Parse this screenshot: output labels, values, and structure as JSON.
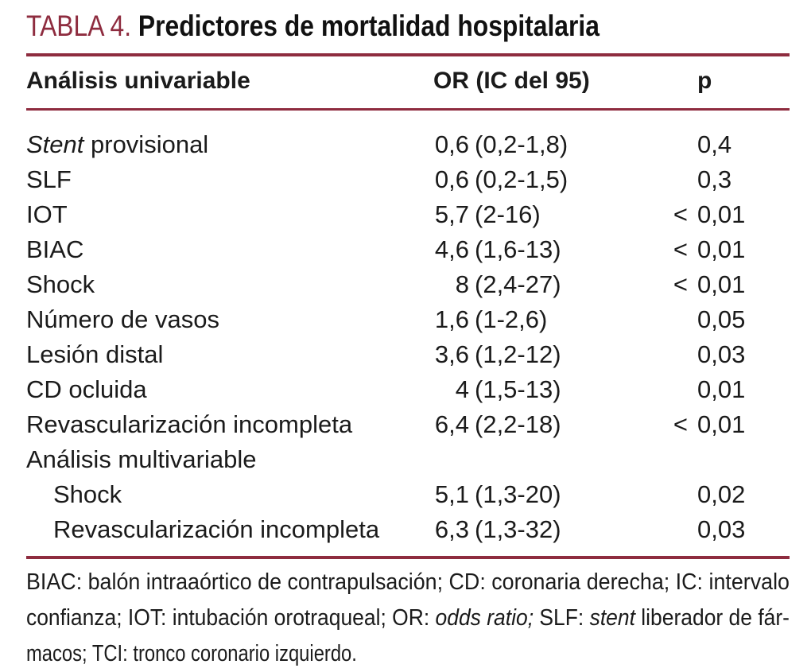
{
  "title": {
    "label": "TABLA 4.",
    "text": "Predictores de mortalidad hospitalaria"
  },
  "colors": {
    "accent": "#8E2C3F",
    "text": "#1b1b1b"
  },
  "header": {
    "col1": "Análisis univariable",
    "col2": "OR (IC del 95)",
    "col3": "p"
  },
  "rows": [
    {
      "label_em": "Stent",
      "label": " provisional",
      "or": "0,6",
      "ci": "(0,2-1,8)",
      "p_lt": "",
      "p": "0,4"
    },
    {
      "label": "SLF",
      "or": "0,6",
      "ci": "(0,2-1,5)",
      "p_lt": "",
      "p": "0,3"
    },
    {
      "label": "IOT",
      "or": "5,7",
      "ci": "(2-16)",
      "p_lt": "<",
      "p": "0,01"
    },
    {
      "label": "BIAC",
      "or": "4,6",
      "ci": "(1,6-13)",
      "p_lt": "<",
      "p": "0,01"
    },
    {
      "label": "Shock",
      "or": "8",
      "ci": "(2,4-27)",
      "p_lt": "<",
      "p": "0,01"
    },
    {
      "label": "Número de vasos",
      "or": "1,6",
      "ci": "(1-2,6)",
      "p_lt": "",
      "p": "0,05"
    },
    {
      "label": "Lesión distal",
      "or": "3,6",
      "ci": "(1,2-12)",
      "p_lt": "",
      "p": "0,03"
    },
    {
      "label": "CD ocluida",
      "or": "4",
      "ci": "(1,5-13)",
      "p_lt": "",
      "p": "0,01"
    },
    {
      "label": "Revascularización incompleta",
      "or": "6,4",
      "ci": "(2,2-18)",
      "p_lt": "<",
      "p": "0,01"
    },
    {
      "label": "Análisis multivariable",
      "section": true
    },
    {
      "label": "Shock",
      "indent": true,
      "or": "5,1",
      "ci": "(1,3-20)",
      "p_lt": "",
      "p": "0,02"
    },
    {
      "label": "Revascularización incompleta",
      "indent": true,
      "or": "6,3",
      "ci": "(1,3-32)",
      "p_lt": "",
      "p": "0,03"
    }
  ],
  "footnote": {
    "line1": "BIAC: balón intraaórtico de contrapulsación; CD: coronaria derecha; IC: intervalo",
    "line2_pre": "confianza; IOT: intubación orotraqueal; OR: ",
    "line2_em1": "odds ratio;",
    "line2_mid": " SLF: ",
    "line2_em2": "stent",
    "line2_post": " liberador de fár-",
    "line3": "macos; TCI: tronco coronario izquierdo."
  }
}
